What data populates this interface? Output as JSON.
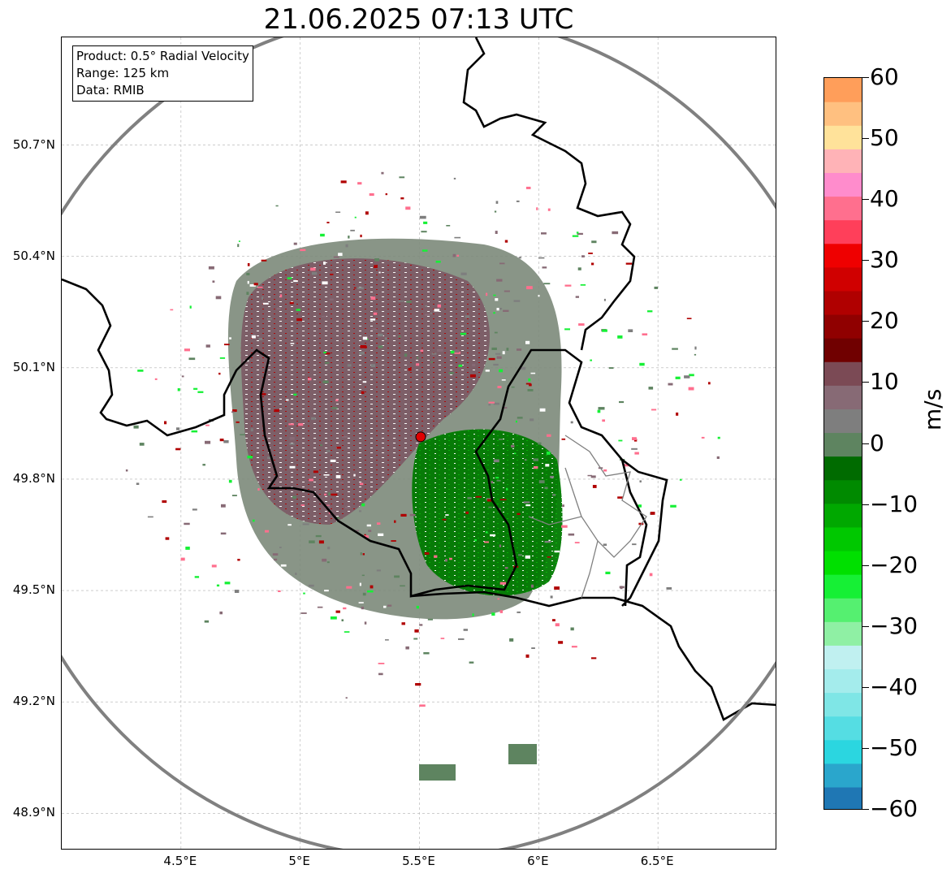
{
  "title": "21.06.2025 07:13 UTC",
  "info": {
    "product": "Product: 0.5° Radial Velocity",
    "range": "Range: 125 km",
    "data": "Data: RMIB"
  },
  "map": {
    "lon_range": [
      4.0,
      7.0
    ],
    "lat_range": [
      48.8,
      50.99
    ],
    "radar_site": {
      "lon": 5.505,
      "lat": 49.914
    },
    "range_ring_km": 125,
    "x_ticks": [
      "4.5°E",
      "5°E",
      "5.5°E",
      "6°E",
      "6.5°E"
    ],
    "y_ticks": [
      "48.9°N",
      "49.2°N",
      "49.5°N",
      "49.8°N",
      "50.1°N",
      "50.4°N",
      "50.7°N"
    ],
    "gridlines": true
  },
  "colorbar": {
    "unit": "m/s",
    "min": -60,
    "max": 60,
    "ticks": [
      "60",
      "50",
      "40",
      "30",
      "20",
      "10",
      "0",
      "−10",
      "−20",
      "−30",
      "−40",
      "−50",
      "−60"
    ],
    "colors": [
      "#1f77b4",
      "#2aa6cc",
      "#2bd6e0",
      "#55dde3",
      "#7fe6e6",
      "#a4ecec",
      "#c0f0f0",
      "#8ff0a4",
      "#55f070",
      "#16f035",
      "#00e000",
      "#00c800",
      "#00a800",
      "#008a00",
      "#006b00",
      "#5e8460",
      "#7e7e7e",
      "#876a75",
      "#7b4a55",
      "#700000",
      "#900000",
      "#b00000",
      "#d00000",
      "#ef0000",
      "#ff3f5a",
      "#ff6f8e",
      "#ff8ccc",
      "#ffb3b7",
      "#ffe29a",
      "#ffc080",
      "#ff9e5a"
    ]
  }
}
